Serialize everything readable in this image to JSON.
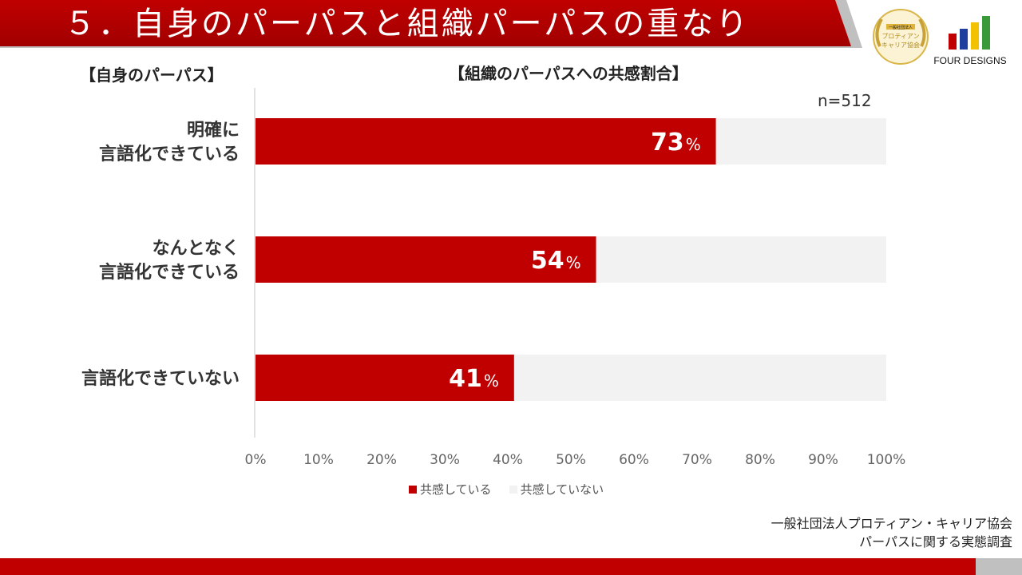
{
  "header": {
    "title": "５．自身のパーパスと組織パーパスの重なり"
  },
  "logos": {
    "badge_text": [
      "一般社団法人",
      "プロティアン",
      "キャリア協会"
    ],
    "brand_name": "FOUR DESIGNS",
    "brand_bar_colors": [
      "#c00000",
      "#1f3f9e",
      "#f2c200",
      "#3a9a3a"
    ]
  },
  "left_heading": "【自身のパーパス】",
  "chart_heading": "【組織のパーパスへの共感割合】",
  "sample_size": "n=512",
  "colors": {
    "accent": "#c00000",
    "remainder": "#f2f2f2"
  },
  "chart_data": {
    "type": "bar",
    "orientation": "horizontal",
    "stacked": true,
    "categories": [
      [
        "明確に",
        "言語化できている"
      ],
      [
        "なんとなく",
        "言語化できている"
      ],
      [
        "言語化できていない"
      ]
    ],
    "series": [
      {
        "name": "共感している",
        "values": [
          73,
          54,
          41
        ],
        "color": "#c00000"
      },
      {
        "name": "共感していない",
        "values": [
          27,
          46,
          59
        ],
        "color": "#f2f2f2"
      }
    ],
    "data_labels": [
      "73",
      "54",
      "41"
    ],
    "data_label_unit": "%",
    "xlim": [
      0,
      100
    ],
    "xticks": [
      "0%",
      "10%",
      "20%",
      "30%",
      "40%",
      "50%",
      "60%",
      "70%",
      "80%",
      "90%",
      "100%"
    ],
    "grid": false,
    "legend_position": "bottom"
  },
  "source": {
    "line1": "一般社団法人プロティアン・キャリア協会",
    "line2": "パーパスに関する実態調査"
  }
}
